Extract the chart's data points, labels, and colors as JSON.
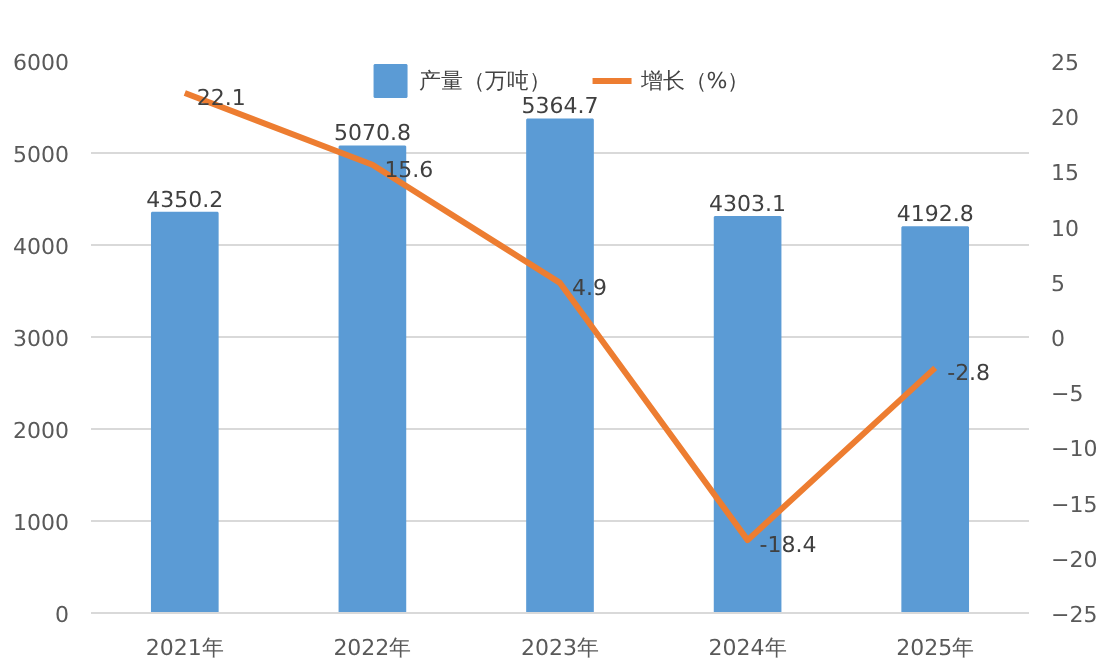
{
  "chart_data": {
    "type": "bar",
    "categories": [
      "2021年",
      "2022年",
      "2023年",
      "2024年",
      "2025年"
    ],
    "series": [
      {
        "name": "产量（万吨）",
        "color": "#5b9bd5",
        "values": [
          4350.2,
          5070.8,
          5364.7,
          4303.1,
          4192.8
        ]
      },
      {
        "name": "增长（%）",
        "type": "line",
        "axis": "y2",
        "color": "#ed7d31",
        "values": [
          22.1,
          15.6,
          4.9,
          -18.4,
          -2.8
        ]
      }
    ],
    "ylim": [
      0,
      6000
    ],
    "yticks": [
      0,
      1000,
      2000,
      3000,
      4000,
      5000,
      6000
    ],
    "y2lim": [
      -25,
      25
    ],
    "y2ticks": [
      -25,
      -20,
      -15,
      -10,
      -5,
      0,
      5,
      10,
      15,
      20,
      25
    ],
    "grid": "y",
    "legend": "top",
    "data_labels": true,
    "marker": "none",
    "line_style": "solid"
  }
}
